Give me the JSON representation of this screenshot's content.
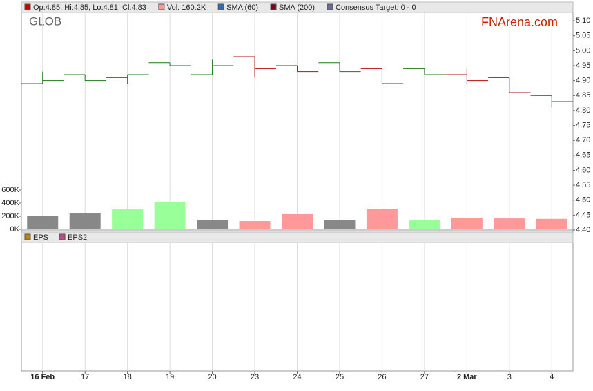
{
  "chart_data": [
    {
      "type": "ohlc",
      "ticker": "GLOB",
      "brand": "FNArena.com",
      "legend": [
        {
          "label": "Op:4.85, Hi:4.85, Lo:4.81, Cl:4.83",
          "color": "#cc0000"
        },
        {
          "label": "Vol: 160.2K",
          "color": "#ff9999"
        },
        {
          "label": "SMA (60)",
          "color": "#2a6ebb"
        },
        {
          "label": "SMA (200)",
          "color": "#800020"
        },
        {
          "label": "Consensus Target: 0 - 0",
          "color": "#6a6a9a"
        }
      ],
      "categories": [
        "16 Feb",
        "17",
        "18",
        "19",
        "20",
        "23",
        "24",
        "25",
        "26",
        "27",
        "2 Mar",
        "3",
        "4"
      ],
      "open": [
        4.89,
        4.92,
        4.91,
        4.96,
        4.92,
        4.98,
        4.95,
        4.96,
        4.94,
        4.94,
        4.92,
        4.91,
        4.85
      ],
      "high": [
        4.93,
        4.92,
        4.92,
        4.96,
        4.97,
        4.98,
        4.95,
        4.96,
        4.94,
        4.94,
        4.94,
        4.91,
        4.85
      ],
      "low": [
        4.89,
        4.9,
        4.89,
        4.95,
        4.92,
        4.91,
        4.93,
        4.93,
        4.89,
        4.92,
        4.89,
        4.86,
        4.81
      ],
      "close": [
        4.9,
        4.9,
        4.92,
        4.95,
        4.95,
        4.94,
        4.93,
        4.93,
        4.89,
        4.92,
        4.9,
        4.86,
        4.83
      ],
      "colors": [
        "#1a7a1a",
        "#1a7a1a",
        "#1a7a1a",
        "#1a7a1a",
        "#1a7a1a",
        "#b01010",
        "#b01010",
        "#1a7a1a",
        "#b01010",
        "#1a7a1a",
        "#b01010",
        "#b01010",
        "#b01010"
      ],
      "ylim": [
        4.4,
        5.128
      ],
      "yticks": [
        {
          "value": 4.4,
          "label": "4.40"
        },
        4.45,
        {
          "value": 4.5,
          "label": "4.50"
        },
        4.55,
        {
          "value": 4.6,
          "label": "4.60"
        },
        4.65,
        {
          "value": 4.7,
          "label": "4.70"
        },
        4.75,
        {
          "value": 4.8,
          "label": "4.80"
        },
        4.85,
        {
          "value": 4.9,
          "label": "4.90"
        },
        4.95,
        {
          "value": 5.0,
          "label": "5.00"
        },
        5.05,
        {
          "value": 5.1,
          "label": "5.10"
        }
      ],
      "grid": "x"
    },
    {
      "type": "bar",
      "values": [
        210000,
        242000,
        305000,
        421000,
        137000,
        126000,
        232000,
        147000,
        316000,
        147000,
        179000,
        168000,
        160200
      ],
      "colors": [
        "#888888",
        "#888888",
        "#99ff99",
        "#99ff99",
        "#888888",
        "#ff9999",
        "#ff9999",
        "#888888",
        "#ff9999",
        "#99ff99",
        "#ff9999",
        "#ff9999",
        "#ff9999"
      ],
      "ylim": [
        0,
        600000
      ],
      "yticks": [
        {
          "value": 0,
          "label": "0K"
        },
        {
          "value": 200000,
          "label": "200K"
        },
        {
          "value": 400000,
          "label": "400K"
        },
        {
          "value": 600000,
          "label": "600K"
        }
      ]
    },
    {
      "type": "line",
      "series": [
        {
          "name": "EPS",
          "color": "#b8860b"
        },
        {
          "name": "EPS2",
          "color": "#c04a90"
        }
      ]
    }
  ]
}
